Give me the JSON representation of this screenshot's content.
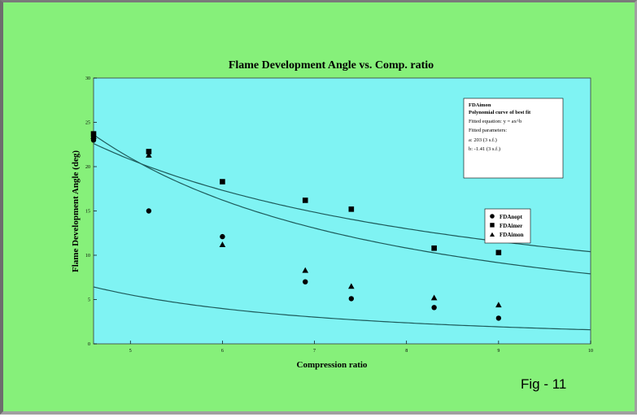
{
  "chart_data": {
    "type": "scatter",
    "title": "Flame Development Angle vs. Comp. ratio",
    "xlabel": "Compression ratio",
    "ylabel": "Flame Development Angle (deg)",
    "xlim": [
      4.6,
      10
    ],
    "ylim": [
      0,
      30
    ],
    "x_ticks": [
      5,
      6,
      7,
      8,
      9,
      10
    ],
    "x_tick_labels": [
      "5",
      "6",
      "7",
      "8",
      "9",
      "10"
    ],
    "y_ticks": [
      0,
      5,
      10,
      15,
      20,
      25,
      30
    ],
    "y_tick_labels": [
      "0",
      "5",
      "10",
      "15",
      "20",
      "25",
      "30"
    ],
    "grid": false,
    "legend_position": "right",
    "series": [
      {
        "name": "FDAnopt",
        "marker": "circle",
        "x": [
          4.6,
          4.6,
          5.2,
          6.0,
          6.9,
          7.4,
          8.3,
          9.0
        ],
        "y": [
          23.0,
          23.3,
          15.0,
          12.1,
          7.0,
          5.1,
          4.1,
          2.9
        ],
        "fit": {
          "a": 100.2,
          "b": -1.8
        }
      },
      {
        "name": "FDAimer",
        "marker": "square",
        "x": [
          4.6,
          5.2,
          6.0,
          6.9,
          7.4,
          8.3,
          9.0
        ],
        "y": [
          23.7,
          21.7,
          18.3,
          16.2,
          15.2,
          10.8,
          10.3
        ],
        "fit": {
          "a": 104.0,
          "b": -1.0
        }
      },
      {
        "name": "FDAimon",
        "marker": "triangle",
        "x": [
          4.6,
          5.2,
          6.0,
          6.9,
          7.4,
          8.3,
          9.0
        ],
        "y": [
          23.4,
          21.3,
          11.2,
          8.3,
          6.5,
          5.2,
          4.4
        ],
        "fit": {
          "a": 203,
          "b": -1.41
        }
      }
    ],
    "fit_box": {
      "series_name": "FDAimon",
      "heading": "Polynomial curve of best fit",
      "equation": "Fitted equation:  y = ax^b",
      "params_heading": "Fitted parameters:",
      "param_a": "a:  203 (3 s.f.)",
      "param_b": "b:  -1.41 (3 s.f.)"
    }
  },
  "figure_label": "Fig - 11",
  "colors": {
    "background": "#86f07a",
    "plot_area": "#7ff3f3",
    "marker": "#000000",
    "curve": "#1e5a5a"
  }
}
